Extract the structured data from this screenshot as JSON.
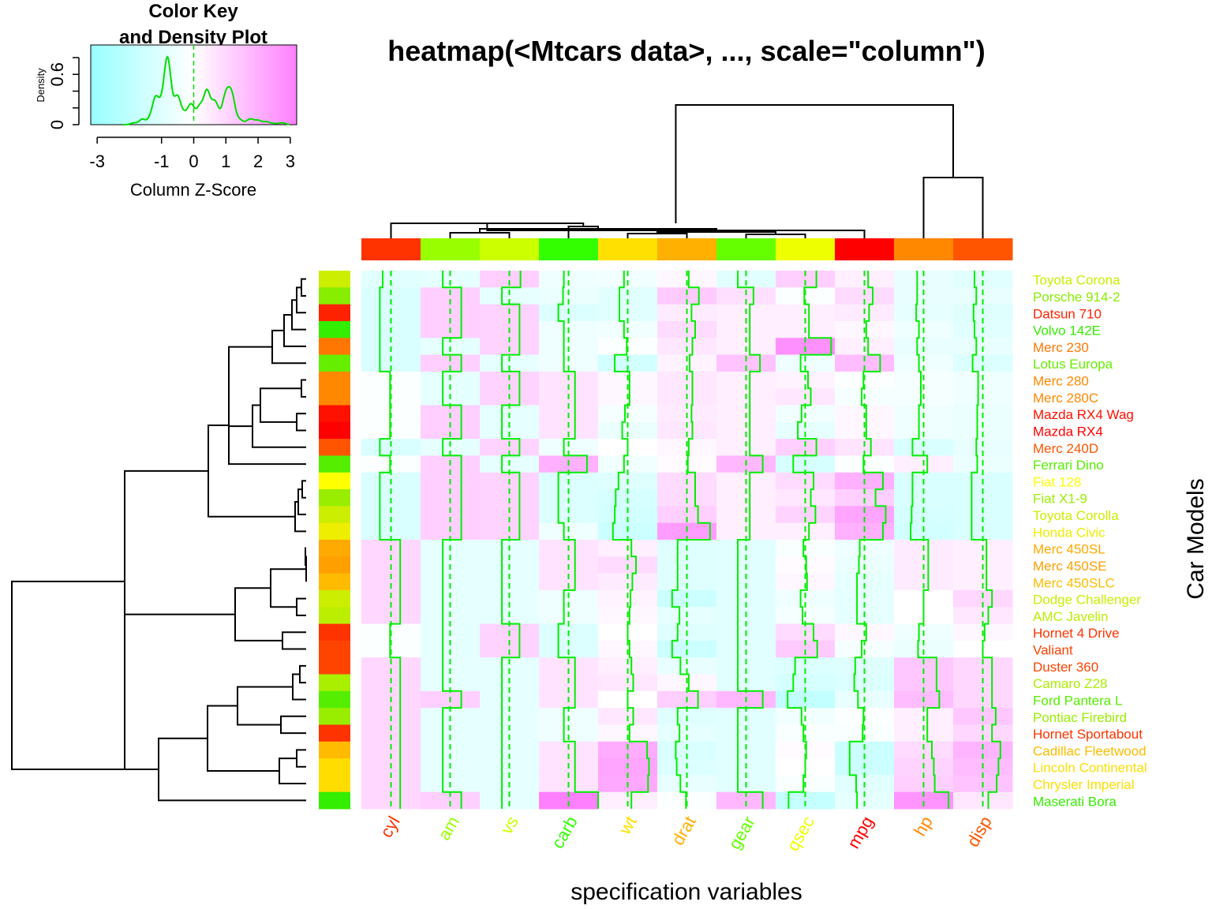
{
  "chart_data": {
    "type": "heatmap",
    "title": "heatmap(<Mtcars data>, ..., scale=\"column\")",
    "xlabel": "specification variables",
    "ylabel": "Car Models",
    "columns": [
      "cyl",
      "am",
      "vs",
      "carb",
      "wt",
      "drat",
      "gear",
      "qsec",
      "mpg",
      "hp",
      "disp"
    ],
    "column_colors": [
      "#FF3300",
      "#99FF00",
      "#CCFF00",
      "#33FF00",
      "#FFE000",
      "#FFB000",
      "#66FF00",
      "#EEFF00",
      "#FF0000",
      "#FF8800",
      "#FF5500"
    ],
    "rows": [
      "Toyota Corona",
      "Porsche 914-2",
      "Datsun 710",
      "Volvo 142E",
      "Merc 230",
      "Lotus Europa",
      "Merc 280",
      "Merc 280C",
      "Mazda RX4 Wag",
      "Mazda RX4",
      "Merc 240D",
      "Ferrari Dino",
      "Fiat 128",
      "Fiat X1-9",
      "Toyota Corolla",
      "Honda Civic",
      "Merc 450SL",
      "Merc 450SE",
      "Merc 450SLC",
      "Dodge Challenger",
      "AMC Javelin",
      "Hornet 4 Drive",
      "Valiant",
      "Duster 360",
      "Camaro Z28",
      "Ford Pantera L",
      "Pontiac Firebird",
      "Hornet Sportabout",
      "Cadillac Fleetwood",
      "Lincoln Continental",
      "Chrysler Imperial",
      "Maserati Bora"
    ],
    "row_colors": [
      "#CCEE00",
      "#88EE00",
      "#FF2200",
      "#33EE00",
      "#FF7700",
      "#66EE00",
      "#FF8800",
      "#FF8800",
      "#FF1100",
      "#FF0000",
      "#FF5500",
      "#55EE00",
      "#FFFF00",
      "#99EE00",
      "#CCEE00",
      "#EEEE00",
      "#FFAA00",
      "#FFA000",
      "#FFBB00",
      "#CCEE00",
      "#BBEE00",
      "#FF3300",
      "#FF4400",
      "#FF4400",
      "#AAEE00",
      "#55EE00",
      "#99EE00",
      "#FF3300",
      "#FFBB00",
      "#FFDD00",
      "#FFDD00",
      "#33EE00"
    ],
    "values": [
      [
        -0.9,
        -0.8,
        1.2,
        -0.5,
        -0.4,
        0.2,
        -0.9,
        1.2,
        0.4,
        -0.7,
        -0.9
      ],
      [
        -1.2,
        1.2,
        -0.8,
        -0.6,
        -0.9,
        1.3,
        0.8,
        -0.1,
        0.9,
        -0.7,
        -0.7
      ],
      [
        -1.2,
        1.2,
        1.1,
        -1.1,
        -0.9,
        0.5,
        0.4,
        0.4,
        0.5,
        -0.8,
        -1.0
      ],
      [
        -1.2,
        1.2,
        1.1,
        -0.5,
        -0.4,
        0.9,
        0.4,
        0.4,
        0.2,
        -0.5,
        -0.9
      ],
      [
        -1.2,
        -0.8,
        1.1,
        -0.5,
        -0.1,
        0.6,
        0.4,
        2.8,
        0.4,
        -0.7,
        -0.7
      ],
      [
        -1.2,
        1.2,
        -0.8,
        -0.5,
        -1.4,
        0.3,
        1.5,
        -0.5,
        1.7,
        -0.5,
        -1.1
      ],
      [
        -0.1,
        -0.8,
        1.1,
        0.7,
        0.2,
        0.6,
        0.4,
        0.3,
        -0.1,
        -0.3,
        -0.5
      ],
      [
        -0.1,
        -0.8,
        1.1,
        0.7,
        0.2,
        0.6,
        0.4,
        0.6,
        -0.3,
        -0.3,
        -0.5
      ],
      [
        -0.1,
        1.2,
        -0.8,
        0.7,
        -0.3,
        0.5,
        0.4,
        -0.4,
        0.2,
        -0.5,
        -0.6
      ],
      [
        -0.1,
        1.2,
        -0.8,
        0.7,
        -0.6,
        0.6,
        0.4,
        -0.8,
        0.2,
        -0.5,
        -0.6
      ],
      [
        -1.2,
        -0.8,
        1.1,
        -0.5,
        0.0,
        0.2,
        0.4,
        1.2,
        0.7,
        -1.2,
        -0.7
      ],
      [
        -0.1,
        1.2,
        -0.8,
        2.0,
        -0.4,
        0.1,
        1.8,
        -1.3,
        -0.1,
        0.4,
        -0.6
      ],
      [
        -1.2,
        1.2,
        1.1,
        -1.1,
        -1.0,
        0.9,
        0.4,
        0.9,
        2.0,
        -1.2,
        -1.2
      ],
      [
        -1.2,
        1.2,
        1.1,
        -1.1,
        -1.3,
        0.9,
        0.4,
        0.6,
        1.2,
        -1.2,
        -1.2
      ],
      [
        -1.2,
        1.2,
        1.1,
        -1.1,
        -1.4,
        1.2,
        0.4,
        1.1,
        2.3,
        -1.3,
        -1.2
      ],
      [
        -1.2,
        1.2,
        1.1,
        -0.5,
        -1.6,
        2.5,
        0.4,
        0.4,
        2.0,
        -1.4,
        -1.2
      ],
      [
        1.0,
        -0.8,
        -0.8,
        0.7,
        0.4,
        -1.0,
        -0.9,
        -0.2,
        -0.5,
        0.5,
        0.4
      ],
      [
        1.0,
        -0.8,
        -0.8,
        0.7,
        0.9,
        -1.0,
        -0.9,
        0.1,
        -0.6,
        0.5,
        0.4
      ],
      [
        1.0,
        -0.8,
        -0.8,
        0.7,
        0.5,
        -1.0,
        -0.9,
        0.2,
        -0.8,
        0.5,
        0.4
      ],
      [
        1.0,
        -0.8,
        -0.8,
        -0.5,
        0.3,
        -1.6,
        -0.9,
        -0.5,
        -0.8,
        0.0,
        1.0
      ],
      [
        1.0,
        -0.8,
        -0.8,
        -0.5,
        0.2,
        -0.8,
        -0.9,
        -0.3,
        -0.8,
        0.0,
        0.6
      ],
      [
        -0.1,
        -0.8,
        1.1,
        -1.1,
        -0.0,
        -1.0,
        -0.9,
        0.9,
        0.2,
        -0.5,
        0.2
      ],
      [
        -0.1,
        -0.8,
        1.1,
        -1.1,
        0.2,
        -1.6,
        -0.9,
        1.3,
        -0.3,
        -0.6,
        -0.0
      ],
      [
        1.0,
        -0.8,
        -0.8,
        0.7,
        0.4,
        -0.7,
        -0.9,
        -1.1,
        -1.0,
        1.4,
        1.0
      ],
      [
        1.0,
        -0.8,
        -0.8,
        0.7,
        0.6,
        0.2,
        -0.9,
        -1.3,
        -1.1,
        1.4,
        1.0
      ],
      [
        1.0,
        1.2,
        -0.8,
        0.7,
        -0.0,
        1.2,
        1.8,
        -1.9,
        -0.7,
        1.7,
        1.0
      ],
      [
        1.0,
        -0.8,
        -0.8,
        -0.5,
        0.6,
        -1.0,
        -0.9,
        -0.4,
        -0.1,
        0.4,
        1.4
      ],
      [
        1.0,
        -0.8,
        -0.8,
        -0.5,
        0.2,
        -0.8,
        -0.9,
        -0.2,
        -0.2,
        0.4,
        1.0
      ],
      [
        1.0,
        -0.8,
        -0.8,
        0.7,
        2.1,
        -1.2,
        -0.9,
        0.1,
        -1.6,
        0.9,
        1.9
      ],
      [
        1.0,
        -0.8,
        -0.8,
        0.7,
        2.3,
        -1.1,
        -0.9,
        -0.0,
        -1.6,
        1.1,
        1.7
      ],
      [
        1.0,
        -0.8,
        -0.8,
        0.7,
        2.2,
        -0.7,
        -0.9,
        -0.2,
        -0.9,
        1.2,
        1.5
      ],
      [
        1.0,
        1.2,
        -0.8,
        3.2,
        0.4,
        -0.1,
        1.8,
        -1.8,
        -0.8,
        2.7,
        0.6
      ]
    ],
    "color_key": {
      "title": "Color Key\nand Density Plot",
      "xlabel": "Column Z-Score",
      "ylabel": "Density",
      "x_ticks": [
        "-3",
        "-1",
        "0",
        "1",
        "2",
        "3"
      ],
      "y_ticks": [
        "0",
        "0.6"
      ],
      "range": [
        -3.2,
        3.2
      ],
      "low_color": "#99FFFF",
      "mid_color": "#FFFFFF",
      "high_color": "#FF80FF",
      "density_color": "#00DD00"
    },
    "trace_color": "#00EE00"
  }
}
